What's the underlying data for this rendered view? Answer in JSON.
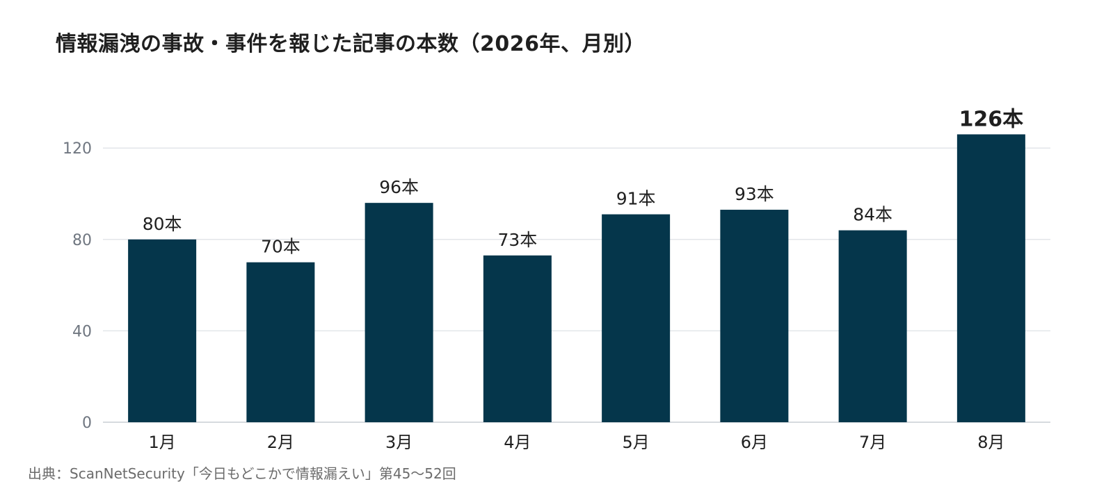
{
  "chart_data": {
    "type": "bar",
    "title": "情報漏洩の事故・事件を報じた記事の本数（2026年、月別）",
    "categories": [
      "1月",
      "2月",
      "3月",
      "4月",
      "5月",
      "6月",
      "7月",
      "8月"
    ],
    "values": [
      80,
      70,
      96,
      73,
      91,
      93,
      84,
      126
    ],
    "data_labels": [
      "80本",
      "70本",
      "96本",
      "73本",
      "91本",
      "93本",
      "84本",
      "126本"
    ],
    "highlight_index": 7,
    "y_ticks": [
      0,
      40,
      80,
      120
    ],
    "ylim": [
      0,
      126
    ],
    "xlabel": "",
    "ylabel": "",
    "grid": true,
    "legend": "none",
    "bar_color": "#05364b",
    "grid_color": "#e3e6ea"
  },
  "source": "出典：ScanNetSecurity「今日もどこかで情報漏えい」第45〜52回"
}
